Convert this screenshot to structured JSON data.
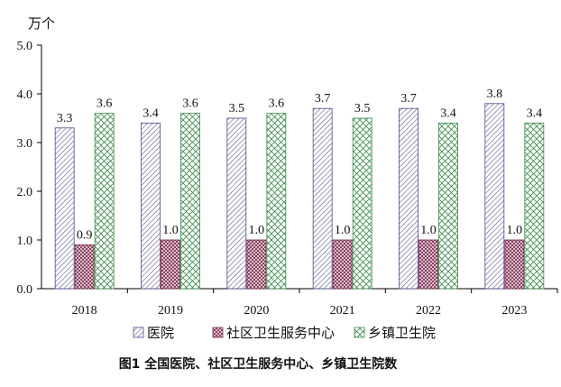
{
  "chart_data": {
    "type": "bar",
    "title": "",
    "ylabel": "万个",
    "xlabel": "",
    "categories": [
      "2018",
      "2019",
      "2020",
      "2021",
      "2022",
      "2023"
    ],
    "series": [
      {
        "name": "医院",
        "values": [
          3.3,
          3.4,
          3.5,
          3.7,
          3.7,
          3.8
        ]
      },
      {
        "name": "社区卫生服务中心",
        "values": [
          0.9,
          1.0,
          1.0,
          1.0,
          1.0,
          1.0
        ]
      },
      {
        "name": "乡镇卫生院",
        "values": [
          3.6,
          3.6,
          3.6,
          3.5,
          3.4,
          3.4
        ]
      }
    ],
    "data_labels": [
      [
        "3.3",
        "3.4",
        "3.5",
        "3.7",
        "3.7",
        "3.8"
      ],
      [
        "0.9",
        "1.0",
        "1.0",
        "1.0",
        "1.0",
        "1.0"
      ],
      [
        "3.6",
        "3.6",
        "3.6",
        "3.5",
        "3.4",
        "3.4"
      ]
    ],
    "ylim": [
      0,
      5.0
    ],
    "yticks": [
      "0.0",
      "1.0",
      "2.0",
      "3.0",
      "4.0",
      "5.0"
    ],
    "grid": false,
    "legend_position": "bottom",
    "colors": {
      "series_stroke": [
        "#4a4a8c",
        "#7a2a4a",
        "#3a8a4a"
      ],
      "series_fill": [
        "#ffffff",
        "#f4e4ec",
        "#eef8ee"
      ]
    }
  },
  "caption": "图1  全国医院、社区卫生服务中心、乡镇卫生院数"
}
